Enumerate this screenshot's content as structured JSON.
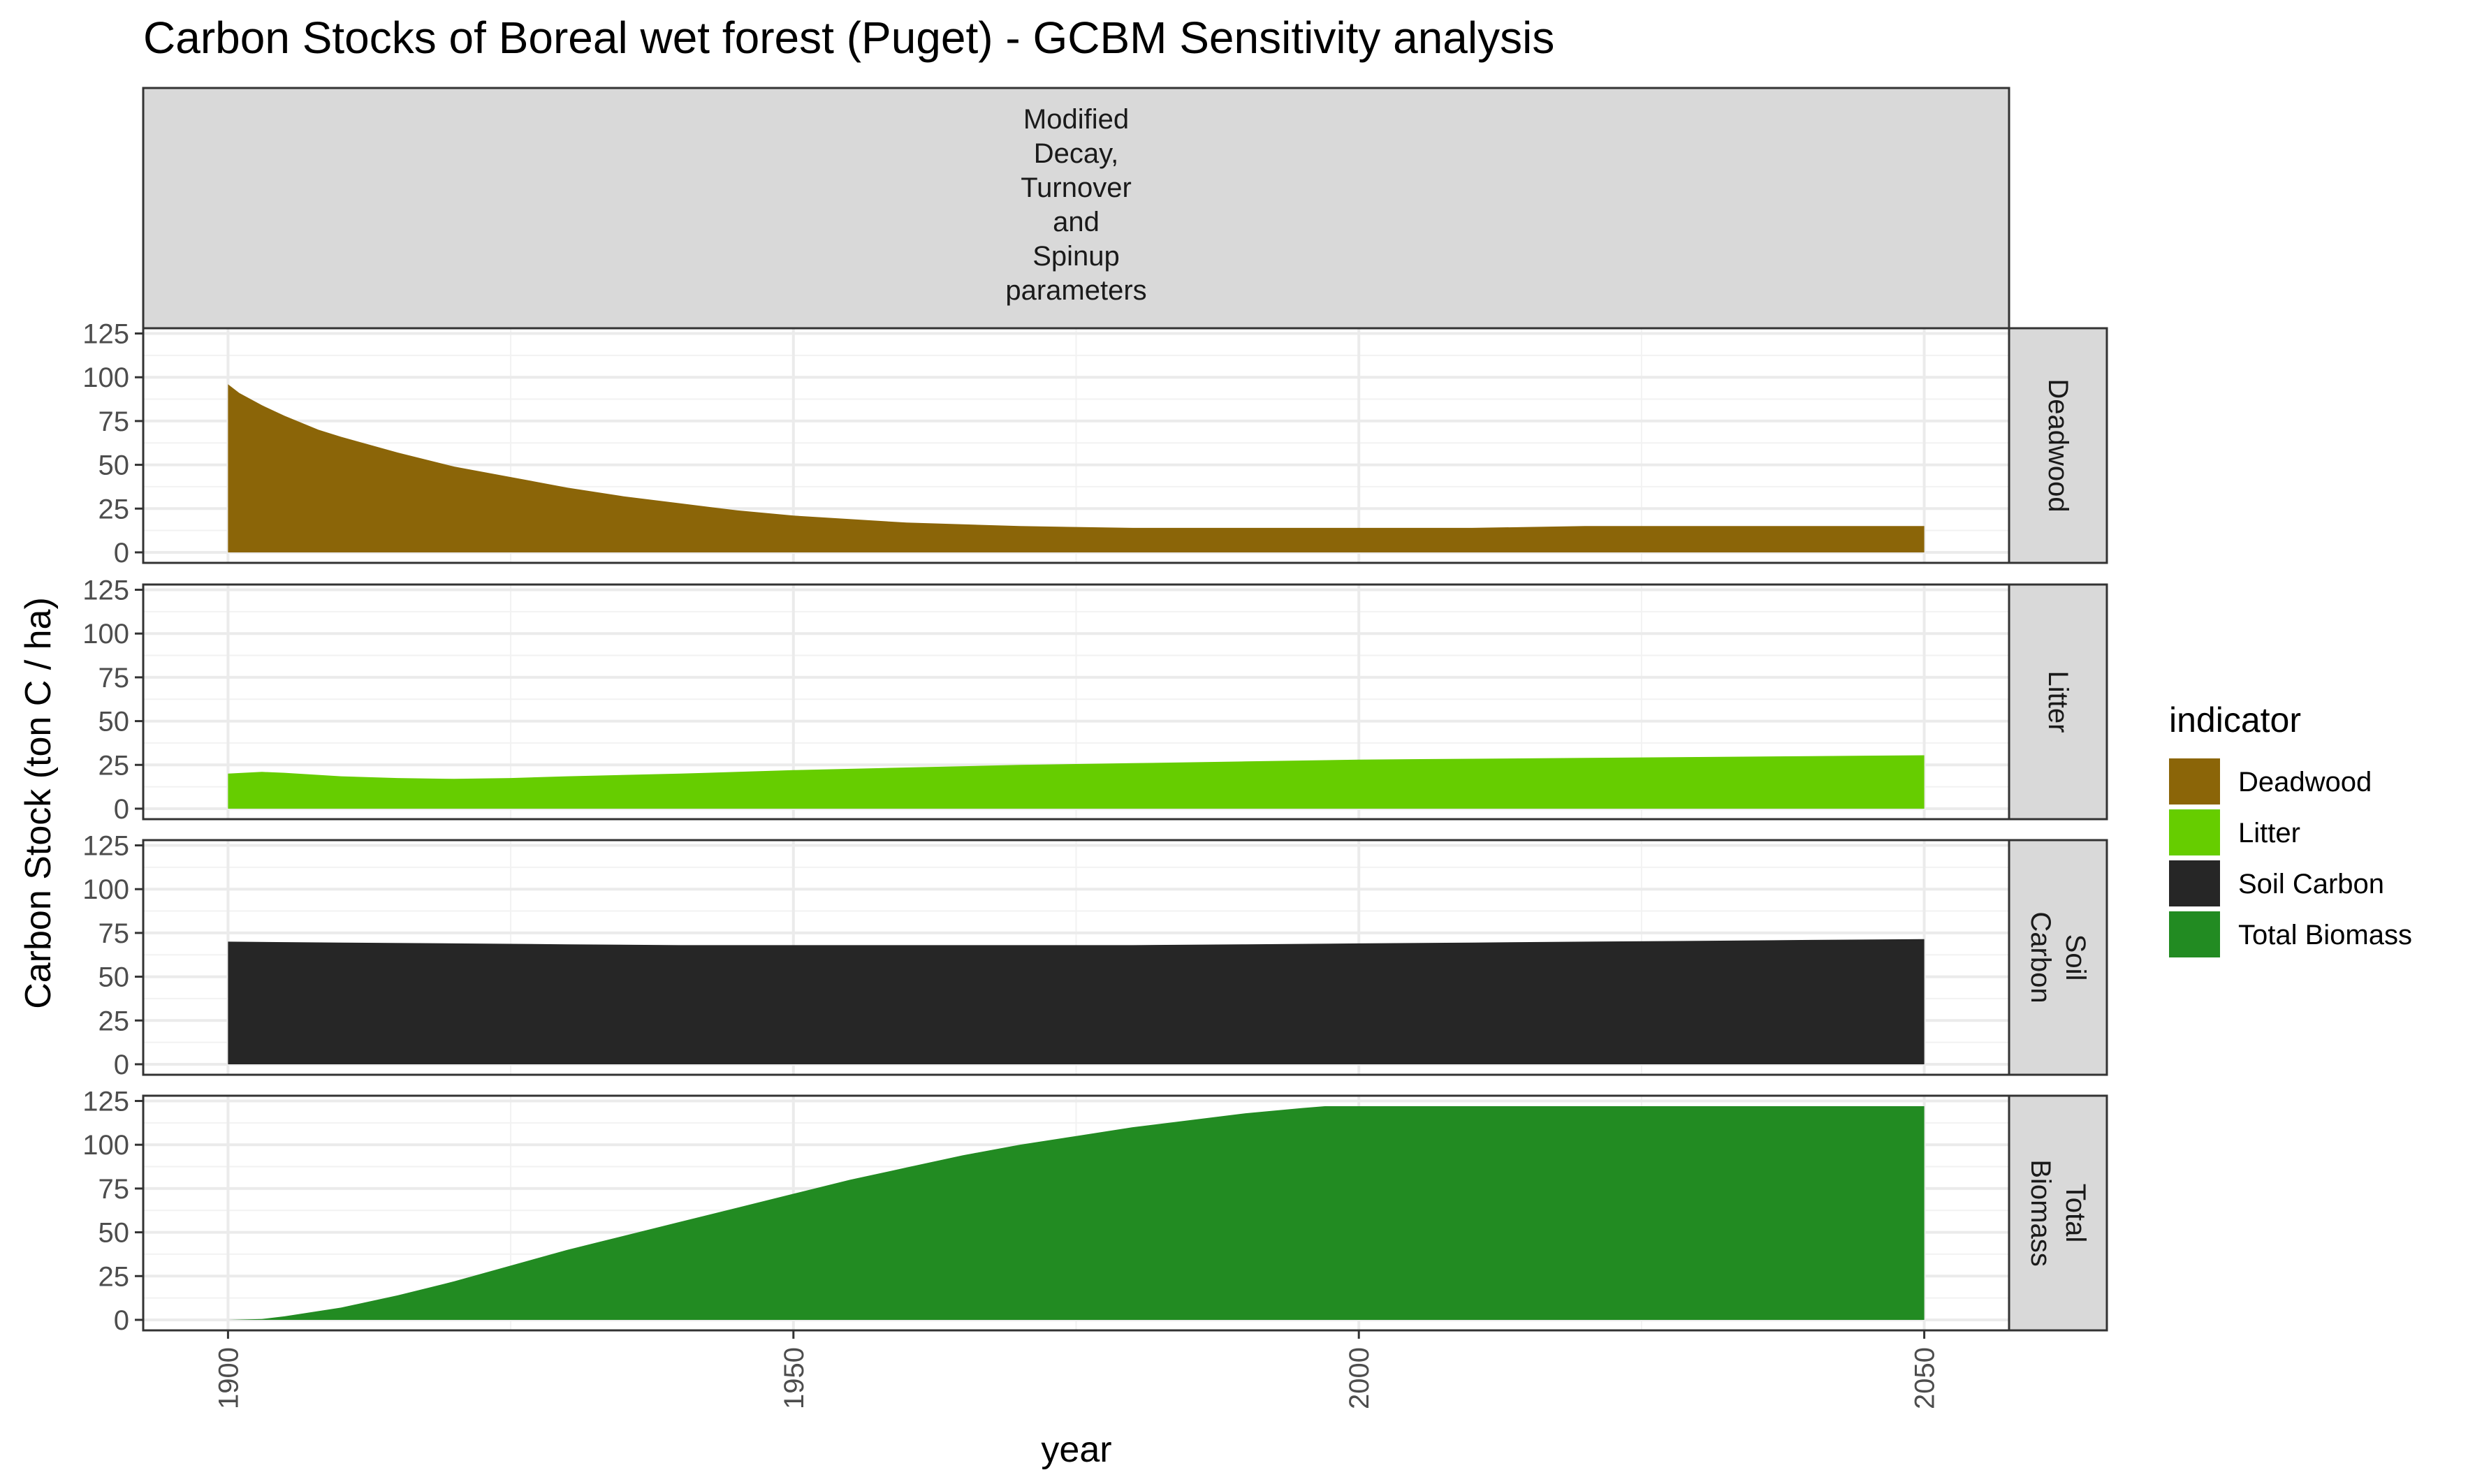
{
  "chart_data": {
    "type": "area",
    "title": "Carbon Stocks of Boreal wet forest (Puget) - GCBM Sensitivity analysis",
    "xlabel": "year",
    "ylabel": "Carbon Stock (ton C / ha)",
    "xlim": [
      1892.5,
      2057.5
    ],
    "ylim": [
      -6,
      128
    ],
    "x_ticks": [
      1900,
      1950,
      2000,
      2050
    ],
    "y_ticks": [
      0,
      25,
      50,
      75,
      100,
      125
    ],
    "grid": true,
    "facet_column_strip": [
      "Modified",
      "Decay,",
      "Turnover",
      "and",
      "Spinup",
      "parameters"
    ],
    "legend": {
      "title": "indicator",
      "position": "right"
    },
    "series": [
      {
        "name": "Deadwood",
        "strip": [
          "Deadwood"
        ],
        "color": "#8B6508",
        "x": [
          1900,
          1901,
          1903,
          1905,
          1908,
          1910,
          1915,
          1920,
          1925,
          1930,
          1935,
          1940,
          1945,
          1950,
          1960,
          1970,
          1980,
          1990,
          2000,
          2010,
          2020,
          2030,
          2040,
          2050
        ],
        "values": [
          96,
          91,
          84,
          78,
          70,
          66,
          57,
          49,
          43,
          37,
          32,
          28,
          24,
          21,
          17,
          15,
          14,
          14,
          14,
          14,
          15,
          15,
          15,
          15
        ]
      },
      {
        "name": "Litter",
        "strip": [
          "Litter"
        ],
        "color": "#66CD00",
        "x": [
          1900,
          1903,
          1905,
          1910,
          1915,
          1920,
          1925,
          1930,
          1940,
          1950,
          1960,
          1970,
          1980,
          1990,
          2000,
          2010,
          2020,
          2030,
          2040,
          2050
        ],
        "values": [
          20,
          21,
          20.5,
          18.5,
          17.5,
          17,
          17.5,
          18.5,
          20,
          22,
          23.5,
          25,
          26,
          27,
          28,
          28.5,
          29,
          29.5,
          30,
          30.5
        ]
      },
      {
        "name": "Soil Carbon",
        "strip": [
          "Soil",
          "Carbon"
        ],
        "color": "#262626",
        "x": [
          1900,
          1910,
          1920,
          1930,
          1940,
          1950,
          1960,
          1970,
          1980,
          1990,
          2000,
          2010,
          2020,
          2030,
          2040,
          2050
        ],
        "values": [
          70,
          69.5,
          69,
          68.5,
          68,
          68,
          68,
          68,
          68,
          68.5,
          69,
          69.5,
          70,
          70.5,
          71,
          71.5
        ]
      },
      {
        "name": "Total Biomass",
        "strip": [
          "Total",
          "Biomass"
        ],
        "color": "#228B22",
        "x": [
          1900,
          1903,
          1905,
          1908,
          1910,
          1915,
          1920,
          1925,
          1930,
          1935,
          1940,
          1945,
          1950,
          1955,
          1960,
          1965,
          1970,
          1975,
          1980,
          1985,
          1990,
          1995,
          1997,
          2000,
          2010,
          2020,
          2030,
          2040,
          2050
        ],
        "values": [
          0,
          0.5,
          2,
          5,
          7,
          14,
          22,
          31,
          40,
          48,
          56,
          64,
          72,
          80,
          87,
          94,
          100,
          105,
          110,
          114,
          118,
          121,
          122,
          122,
          122,
          122,
          122,
          122,
          122
        ]
      }
    ]
  }
}
